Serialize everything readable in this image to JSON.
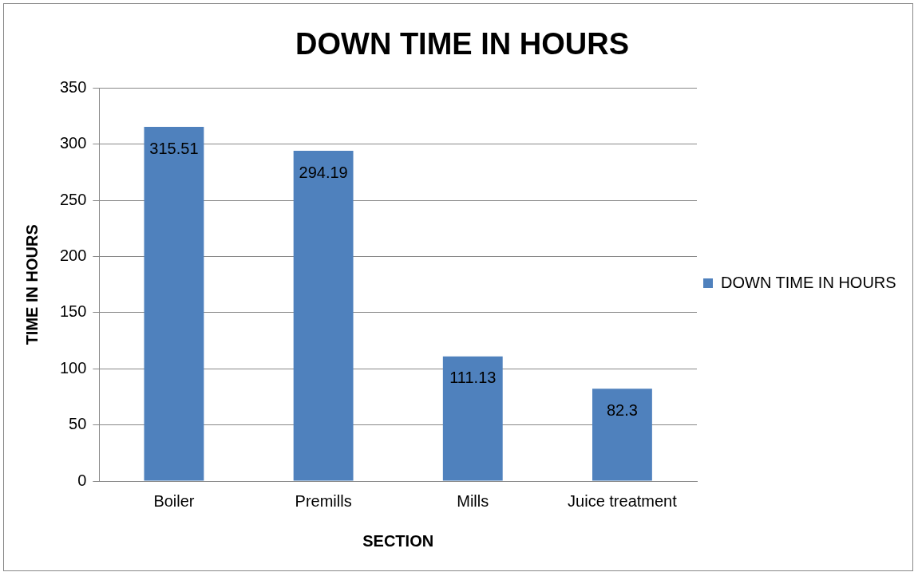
{
  "chart_data": {
    "type": "bar",
    "title": "DOWN TIME IN HOURS",
    "xlabel": "SECTION",
    "ylabel": "TIME IN HOURS",
    "categories": [
      "Boiler",
      "Premills",
      "Mills",
      "Juice treatment"
    ],
    "series": [
      {
        "name": "DOWN TIME IN HOURS",
        "color": "#4f81bd",
        "values": [
          315.51,
          294.19,
          111.13,
          82.3
        ]
      }
    ],
    "ylim": [
      0,
      350
    ],
    "yticks": [
      0,
      50,
      100,
      150,
      200,
      250,
      300,
      350
    ],
    "grid": "y",
    "legend": "right",
    "data_labels": true
  }
}
